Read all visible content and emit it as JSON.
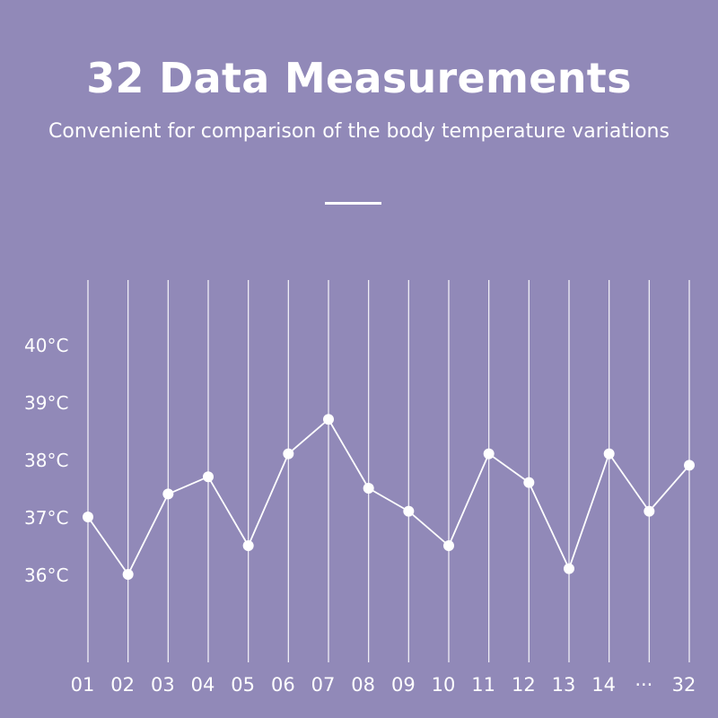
{
  "header": {
    "title": "32 Data Measurements",
    "subtitle": "Convenient for comparison of the body temperature variations"
  },
  "colors": {
    "background": "#9189b8",
    "foreground": "#ffffff"
  },
  "chart_data": {
    "type": "line",
    "title": "",
    "xlabel": "",
    "ylabel": "",
    "categories": [
      "01",
      "02",
      "03",
      "04",
      "05",
      "06",
      "07",
      "08",
      "09",
      "10",
      "11",
      "12",
      "13",
      "14",
      "···",
      "32"
    ],
    "series": [
      {
        "values": [
          37.0,
          36.0,
          37.4,
          37.7,
          36.5,
          38.1,
          38.7,
          37.5,
          37.1,
          36.5,
          38.1,
          37.6,
          36.1,
          38.1,
          37.1,
          37.9
        ]
      }
    ],
    "yticks": [
      "40°C",
      "39°C",
      "38°C",
      "37°C",
      "36°C"
    ],
    "ytick_values": [
      40,
      39,
      38,
      37,
      36
    ],
    "ylim": [
      34.9,
      40.9
    ],
    "grid": "vertical lines",
    "legend": "none"
  }
}
